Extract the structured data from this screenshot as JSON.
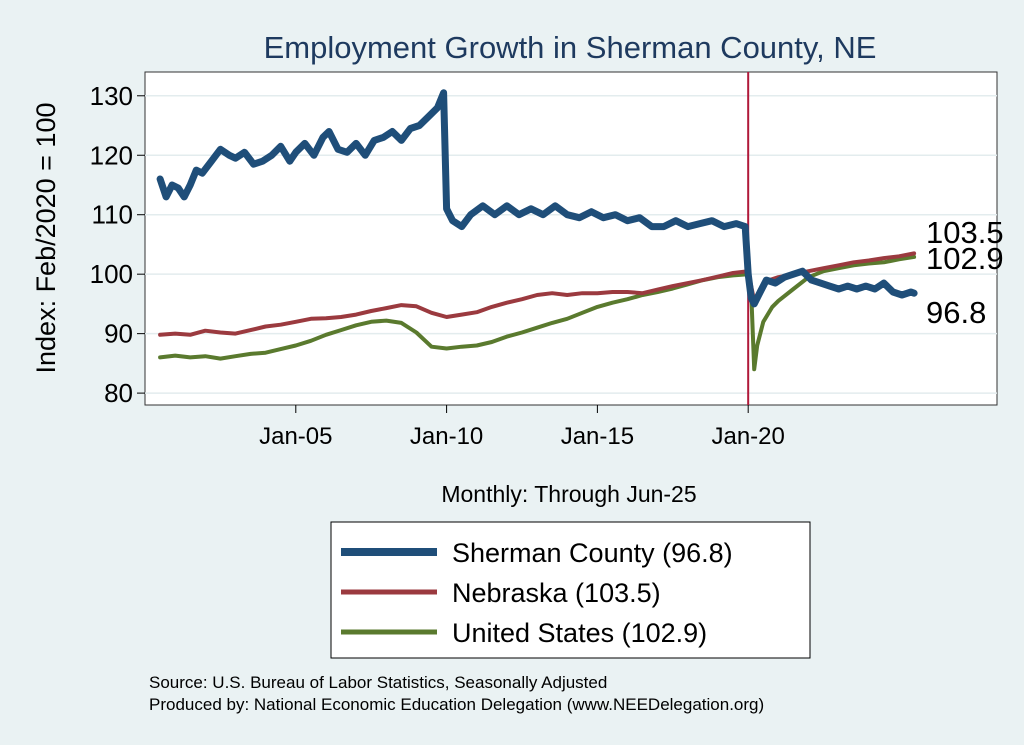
{
  "chart_data": {
    "type": "line",
    "title": "Employment Growth in Sherman  County, NE",
    "ylabel": "Index: Feb/2020 = 100",
    "xlabel": "Monthly: Through Jun-25",
    "ylim": [
      78,
      134
    ],
    "xlim": [
      2000.0,
      2028.25
    ],
    "yticks": [
      80,
      90,
      100,
      110,
      120,
      130
    ],
    "xticks": [
      {
        "x": 2005.0,
        "label": "Jan-05"
      },
      {
        "x": 2010.0,
        "label": "Jan-10"
      },
      {
        "x": 2015.0,
        "label": "Jan-15"
      },
      {
        "x": 2020.0,
        "label": "Jan-20"
      }
    ],
    "reference_line_x": 2020.0,
    "grid": true,
    "series": [
      {
        "name": "Sherman  County",
        "color": "#1f4e79",
        "legend": "Sherman  County (96.8)",
        "end_label": "96.8",
        "x": [
          2000.5,
          2000.7,
          2000.9,
          2001.1,
          2001.3,
          2001.5,
          2001.7,
          2001.9,
          2002.2,
          2002.5,
          2002.8,
          2003.0,
          2003.3,
          2003.6,
          2003.9,
          2004.2,
          2004.5,
          2004.8,
          2005.0,
          2005.3,
          2005.6,
          2005.9,
          2006.1,
          2006.4,
          2006.7,
          2007.0,
          2007.3,
          2007.6,
          2007.9,
          2008.2,
          2008.5,
          2008.8,
          2009.1,
          2009.4,
          2009.7,
          2009.9,
          2010.0,
          2010.2,
          2010.5,
          2010.8,
          2011.2,
          2011.6,
          2012.0,
          2012.4,
          2012.8,
          2013.2,
          2013.6,
          2014.0,
          2014.4,
          2014.8,
          2015.2,
          2015.6,
          2016.0,
          2016.4,
          2016.8,
          2017.2,
          2017.6,
          2018.0,
          2018.4,
          2018.8,
          2019.2,
          2019.6,
          2019.9,
          2020.0,
          2020.1,
          2020.2,
          2020.4,
          2020.6,
          2020.9,
          2021.2,
          2021.5,
          2021.8,
          2022.1,
          2022.4,
          2022.7,
          2023.0,
          2023.3,
          2023.6,
          2023.9,
          2024.2,
          2024.5,
          2024.8,
          2025.1,
          2025.4,
          2025.5
        ],
        "values": [
          116.0,
          113.0,
          115.0,
          114.5,
          113.0,
          115.0,
          117.5,
          117.0,
          119.0,
          121.0,
          120.0,
          119.5,
          120.5,
          118.5,
          119.0,
          120.0,
          121.5,
          119.0,
          120.5,
          122.0,
          120.0,
          123.0,
          124.0,
          121.0,
          120.5,
          122.0,
          120.0,
          122.5,
          123.0,
          124.0,
          122.5,
          124.5,
          125.0,
          126.5,
          128.0,
          130.5,
          111.0,
          109.0,
          108.0,
          110.0,
          111.5,
          110.0,
          111.5,
          110.0,
          111.0,
          110.0,
          111.5,
          110.0,
          109.5,
          110.5,
          109.5,
          110.0,
          109.0,
          109.5,
          108.0,
          108.0,
          109.0,
          108.0,
          108.5,
          109.0,
          108.0,
          108.5,
          108.0,
          100.0,
          96.0,
          95.0,
          97.0,
          99.0,
          98.5,
          99.5,
          100.0,
          100.5,
          99.0,
          98.5,
          98.0,
          97.5,
          98.0,
          97.5,
          98.0,
          97.5,
          98.5,
          97.0,
          96.5,
          97.0,
          96.8
        ]
      },
      {
        "name": "Nebraska",
        "color": "#9b3a3f",
        "legend": "Nebraska (103.5)",
        "end_label": "103.5",
        "x": [
          2000.5,
          2001.0,
          2001.5,
          2002.0,
          2002.5,
          2003.0,
          2003.5,
          2004.0,
          2004.5,
          2005.0,
          2005.5,
          2006.0,
          2006.5,
          2007.0,
          2007.5,
          2008.0,
          2008.5,
          2009.0,
          2009.5,
          2010.0,
          2010.5,
          2011.0,
          2011.5,
          2012.0,
          2012.5,
          2013.0,
          2013.5,
          2014.0,
          2014.5,
          2015.0,
          2015.5,
          2016.0,
          2016.5,
          2017.0,
          2017.5,
          2018.0,
          2018.5,
          2019.0,
          2019.5,
          2020.0,
          2020.1,
          2020.2,
          2020.4,
          2020.7,
          2021.0,
          2021.5,
          2022.0,
          2022.5,
          2023.0,
          2023.5,
          2024.0,
          2024.5,
          2025.0,
          2025.5
        ],
        "values": [
          89.8,
          90.0,
          89.8,
          90.5,
          90.2,
          90.0,
          90.6,
          91.2,
          91.5,
          92.0,
          92.5,
          92.6,
          92.8,
          93.2,
          93.8,
          94.3,
          94.8,
          94.6,
          93.5,
          92.8,
          93.2,
          93.6,
          94.5,
          95.2,
          95.8,
          96.5,
          96.8,
          96.5,
          96.8,
          96.8,
          97.0,
          97.0,
          96.8,
          97.4,
          98.0,
          98.5,
          99.0,
          99.6,
          100.2,
          100.5,
          98.0,
          95.5,
          97.5,
          99.0,
          99.5,
          100.0,
          100.5,
          101.0,
          101.5,
          102.0,
          102.3,
          102.7,
          103.0,
          103.5
        ]
      },
      {
        "name": "United States",
        "color": "#5a7a2e",
        "legend": "United States (102.9)",
        "end_label": "102.9",
        "x": [
          2000.5,
          2001.0,
          2001.5,
          2002.0,
          2002.5,
          2003.0,
          2003.5,
          2004.0,
          2004.5,
          2005.0,
          2005.5,
          2006.0,
          2006.5,
          2007.0,
          2007.5,
          2008.0,
          2008.5,
          2009.0,
          2009.5,
          2010.0,
          2010.5,
          2011.0,
          2011.5,
          2012.0,
          2012.5,
          2013.0,
          2013.5,
          2014.0,
          2014.5,
          2015.0,
          2015.5,
          2016.0,
          2016.5,
          2017.0,
          2017.5,
          2018.0,
          2018.5,
          2019.0,
          2019.5,
          2020.0,
          2020.1,
          2020.2,
          2020.3,
          2020.5,
          2020.8,
          2021.0,
          2021.5,
          2022.0,
          2022.5,
          2023.0,
          2023.5,
          2024.0,
          2024.5,
          2025.0,
          2025.5
        ],
        "values": [
          86.0,
          86.3,
          86.0,
          86.2,
          85.8,
          86.2,
          86.6,
          86.8,
          87.4,
          88.0,
          88.8,
          89.8,
          90.6,
          91.4,
          92.0,
          92.2,
          91.8,
          90.2,
          87.8,
          87.5,
          87.8,
          88.0,
          88.6,
          89.5,
          90.2,
          91.0,
          91.8,
          92.5,
          93.5,
          94.5,
          95.2,
          95.8,
          96.5,
          97.0,
          97.6,
          98.3,
          99.0,
          99.5,
          99.8,
          100.0,
          97.0,
          84.0,
          88.0,
          92.0,
          94.5,
          95.5,
          97.5,
          99.5,
          100.5,
          101.0,
          101.5,
          101.8,
          102.0,
          102.5,
          102.9
        ]
      }
    ],
    "source_line1": "Source: U.S. Bureau of Labor Statistics, Seasonally Adjusted",
    "source_line2": "Produced by: National Economic Education Delegation (www.NEEDelegation.org)"
  }
}
